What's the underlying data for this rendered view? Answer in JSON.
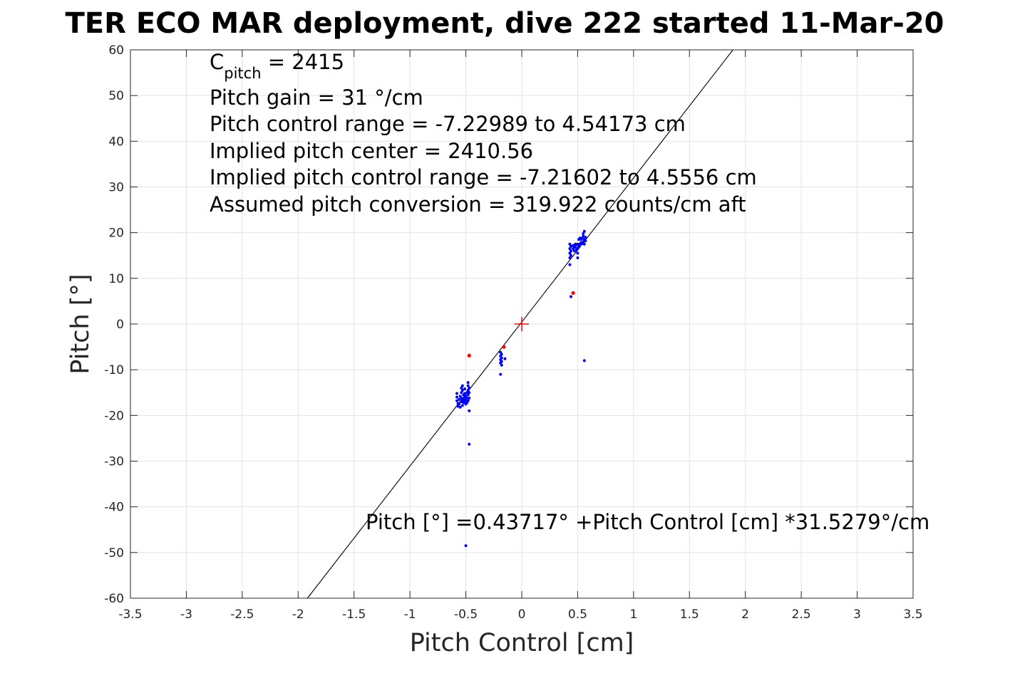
{
  "chart_data": {
    "type": "scatter",
    "title": "TER ECO MAR deployment, dive 222 started 11-Mar-20",
    "xlabel": "Pitch Control [cm]",
    "ylabel": "Pitch [°]",
    "xlim": [
      -3.5,
      3.5
    ],
    "ylim": [
      -60,
      60
    ],
    "x_ticks": [
      -3.5,
      -3,
      -2.5,
      -2,
      -1.5,
      -1,
      -0.5,
      0,
      0.5,
      1,
      1.5,
      2,
      2.5,
      3,
      3.5
    ],
    "x_tick_labels": [
      "-3.5",
      "-3",
      "-2.5",
      "-2",
      "-1.5",
      "-1",
      "-0.5",
      "0",
      "0.5",
      "1",
      "1.5",
      "2",
      "2.5",
      "3",
      "3.5"
    ],
    "y_ticks": [
      -60,
      -50,
      -40,
      -30,
      -20,
      -10,
      0,
      10,
      20,
      30,
      40,
      50,
      60
    ],
    "y_tick_labels": [
      "-60",
      "-50",
      "-40",
      "-30",
      "-20",
      "-10",
      "0",
      "10",
      "20",
      "30",
      "40",
      "50",
      "60"
    ],
    "grid": true,
    "colors": {
      "blue_points": "#0000ff",
      "red_points": "#ff0000",
      "fit_line": "#000000",
      "grid": "#e3e3e3"
    },
    "annotations": {
      "c_pitch_main": "C",
      "c_pitch_sub": "pitch",
      "c_pitch_value": " = 2415",
      "pitch_gain": "Pitch gain = 31 °/cm",
      "control_range": "Pitch control range = -7.22989 to 4.54173 cm",
      "implied_center": "Implied pitch center = 2410.56",
      "implied_range": "Implied pitch control range = -7.21602 to 4.5556 cm",
      "conversion": "Assumed pitch conversion = 319.922 counts/cm aft",
      "fit_equation": "Pitch [°] =0.43717° +Pitch Control [cm] *31.5279°/cm"
    },
    "fit_line": {
      "intercept": 0.43717,
      "slope": 31.5279
    },
    "center_marker": {
      "x": 0,
      "y": 0
    },
    "series": [
      {
        "color": "#0000ff",
        "points": [
          [
            -0.58,
            -15.2
          ],
          [
            -0.58,
            -16.0
          ],
          [
            -0.58,
            -16.8
          ],
          [
            -0.57,
            -17.4
          ],
          [
            -0.57,
            -18.0
          ],
          [
            -0.56,
            -16.5
          ],
          [
            -0.56,
            -17.5
          ],
          [
            -0.55,
            -18.2
          ],
          [
            -0.55,
            -15.8
          ],
          [
            -0.54,
            -14.0
          ],
          [
            -0.54,
            -15.0
          ],
          [
            -0.54,
            -16.2
          ],
          [
            -0.54,
            -17.0
          ],
          [
            -0.53,
            -13.5
          ],
          [
            -0.53,
            -14.5
          ],
          [
            -0.53,
            -16.8
          ],
          [
            -0.53,
            -17.8
          ],
          [
            -0.52,
            -15.5
          ],
          [
            -0.52,
            -16.5
          ],
          [
            -0.52,
            -17.2
          ],
          [
            -0.51,
            -14.2
          ],
          [
            -0.51,
            -15.2
          ],
          [
            -0.51,
            -16.0
          ],
          [
            -0.51,
            -17.0
          ],
          [
            -0.5,
            -15.8
          ],
          [
            -0.5,
            -16.6
          ],
          [
            -0.5,
            -17.5
          ],
          [
            -0.49,
            -15.0
          ],
          [
            -0.49,
            -16.2
          ],
          [
            -0.49,
            -17.2
          ],
          [
            -0.48,
            -12.8
          ],
          [
            -0.48,
            -13.5
          ],
          [
            -0.48,
            -14.5
          ],
          [
            -0.48,
            -15.5
          ],
          [
            -0.48,
            -16.8
          ],
          [
            -0.47,
            -14.0
          ],
          [
            -0.47,
            -15.0
          ],
          [
            -0.47,
            -16.2
          ],
          [
            -0.47,
            -19.0
          ],
          [
            -0.47,
            -26.3
          ],
          [
            -0.5,
            -48.5
          ],
          [
            -0.19,
            -6.2
          ],
          [
            -0.19,
            -7.0
          ],
          [
            -0.19,
            -7.8
          ],
          [
            -0.19,
            -8.5
          ],
          [
            -0.18,
            -6.6
          ],
          [
            -0.18,
            -7.4
          ],
          [
            -0.18,
            -8.2
          ],
          [
            -0.18,
            -9.0
          ],
          [
            -0.19,
            -11.0
          ],
          [
            -0.15,
            -7.6
          ],
          [
            0.43,
            13.0
          ],
          [
            0.43,
            14.5
          ],
          [
            0.43,
            15.5
          ],
          [
            0.43,
            16.5
          ],
          [
            0.43,
            17.5
          ],
          [
            0.44,
            15.0
          ],
          [
            0.44,
            16.0
          ],
          [
            0.44,
            17.0
          ],
          [
            0.46,
            16.5
          ],
          [
            0.46,
            17.2
          ],
          [
            0.47,
            16.0
          ],
          [
            0.47,
            17.0
          ],
          [
            0.48,
            16.8
          ],
          [
            0.48,
            17.5
          ],
          [
            0.49,
            16.2
          ],
          [
            0.49,
            17.4
          ],
          [
            0.5,
            14.5
          ],
          [
            0.5,
            15.5
          ],
          [
            0.5,
            16.5
          ],
          [
            0.5,
            17.5
          ],
          [
            0.51,
            17.0
          ],
          [
            0.51,
            18.5
          ],
          [
            0.52,
            17.5
          ],
          [
            0.52,
            18.8
          ],
          [
            0.53,
            17.8
          ],
          [
            0.53,
            18.5
          ],
          [
            0.54,
            17.6
          ],
          [
            0.54,
            18.8
          ],
          [
            0.55,
            18.0
          ],
          [
            0.55,
            19.2
          ],
          [
            0.55,
            19.8
          ],
          [
            0.56,
            18.5
          ],
          [
            0.56,
            17.5
          ],
          [
            0.56,
            20.3
          ],
          [
            0.57,
            18.2
          ],
          [
            0.57,
            19.0
          ],
          [
            0.44,
            6.0
          ],
          [
            0.56,
            -8.0
          ]
        ]
      },
      {
        "color": "#ff0000",
        "points": [
          [
            -0.47,
            -6.9
          ],
          [
            -0.16,
            -5.0
          ],
          [
            0.46,
            6.8
          ]
        ]
      }
    ]
  }
}
